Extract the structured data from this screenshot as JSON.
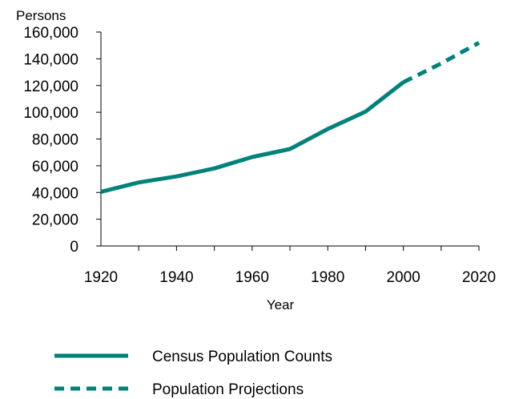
{
  "chart_data": {
    "type": "line",
    "ylabel": "Persons",
    "xlabel": "Year",
    "xlim": [
      1920,
      2020
    ],
    "ylim": [
      0,
      160000
    ],
    "x_ticks": [
      1920,
      1940,
      1960,
      1980,
      2000,
      2020
    ],
    "x_tick_labels": [
      "1920",
      "1940",
      "1960",
      "1980",
      "2000",
      "2020"
    ],
    "y_ticks": [
      0,
      20000,
      40000,
      60000,
      80000,
      100000,
      120000,
      140000,
      160000
    ],
    "y_tick_labels": [
      "0",
      "20,000",
      "40,000",
      "60,000",
      "80,000",
      "100,000",
      "120,000",
      "140,000",
      "160,000"
    ],
    "grid": false,
    "legend_position": "bottom",
    "series": [
      {
        "name": "Census Population Counts",
        "style": "solid",
        "color": "#00827a",
        "x": [
          1920,
          1930,
          1940,
          1950,
          1960,
          1970,
          1980,
          1990,
          2000
        ],
        "y": [
          40500,
          47500,
          52000,
          58000,
          66500,
          72500,
          87500,
          100500,
          122500
        ]
      },
      {
        "name": "Population Projections",
        "style": "dashed",
        "color": "#00827a",
        "x": [
          2000,
          2010,
          2020
        ],
        "y": [
          122500,
          136500,
          152000
        ]
      }
    ]
  }
}
